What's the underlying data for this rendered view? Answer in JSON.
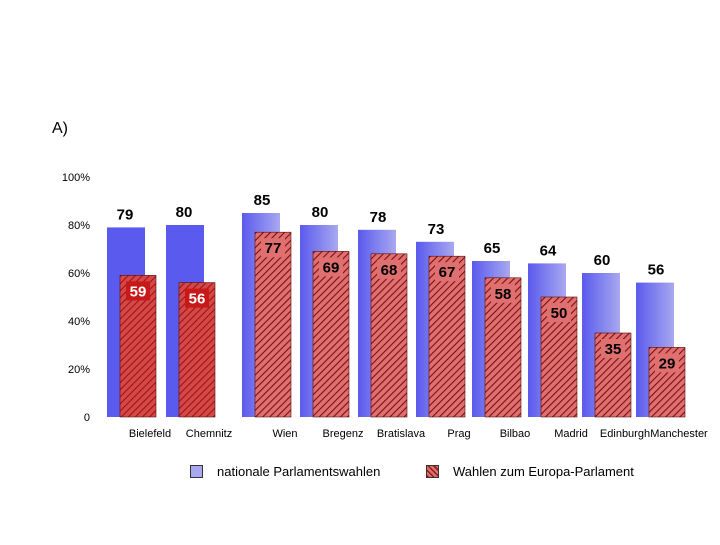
{
  "panel_label": "A)",
  "chart_data": {
    "type": "bar",
    "categories": [
      "Bielefeld",
      "Chemnitz",
      "Wien",
      "Bregenz",
      "Bratislava",
      "Prag",
      "Bilbao",
      "Madrid",
      "Edinburgh",
      "Manchester"
    ],
    "series": [
      {
        "name": "nationale Parlamentswahlen",
        "values": [
          79,
          80,
          85,
          80,
          78,
          73,
          65,
          64,
          60,
          56
        ]
      },
      {
        "name": "Wahlen zum Europa-Parlament",
        "values": [
          59,
          56,
          77,
          69,
          68,
          67,
          58,
          50,
          35,
          29
        ]
      }
    ],
    "ytick_labels": [
      "0",
      "20%",
      "40%",
      "60%",
      "80%",
      "100%"
    ],
    "ylim": [
      0,
      100
    ],
    "grid": false,
    "legend_position": "bottom",
    "colors": {
      "national_strong": "#5a5aee",
      "national_light": "#a8a8f0",
      "eu_strong": "#c81818",
      "eu_light": "#e07070",
      "eu_hatch": "#7a1010"
    }
  }
}
